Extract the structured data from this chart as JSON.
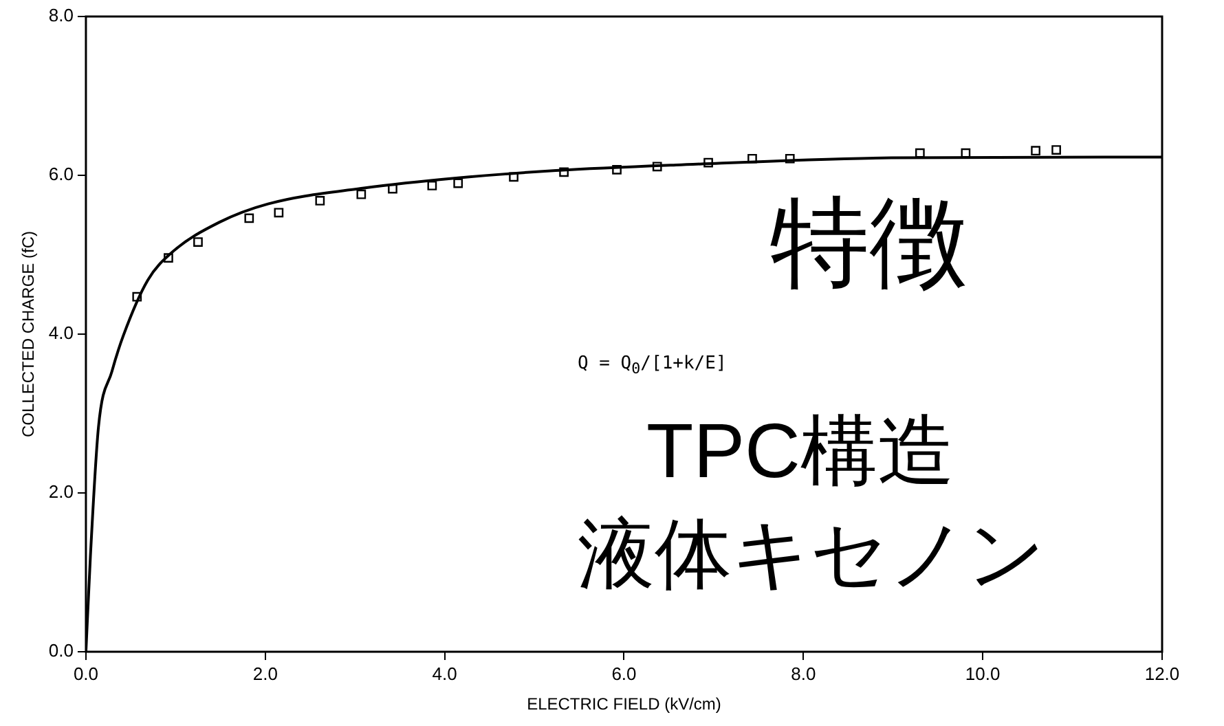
{
  "chart_data": {
    "type": "scatter",
    "xlabel": "ELECTRIC FIELD (kV/cm)",
    "ylabel": "COLLECTED CHARGE (fC)",
    "xlim": [
      0,
      12
    ],
    "ylim": [
      0,
      8
    ],
    "xticks": [
      {
        "value": 0,
        "label": "0.0"
      },
      {
        "value": 2,
        "label": "2.0"
      },
      {
        "value": 4,
        "label": "4.0"
      },
      {
        "value": 6,
        "label": "6.0"
      },
      {
        "value": 8,
        "label": "8.0"
      },
      {
        "value": 10,
        "label": "10.0"
      },
      {
        "value": 12,
        "label": "12.0"
      }
    ],
    "yticks": [
      {
        "value": 0,
        "label": "0.0"
      },
      {
        "value": 2,
        "label": "2.0"
      },
      {
        "value": 4,
        "label": "4.0"
      },
      {
        "value": 6,
        "label": "6.0"
      },
      {
        "value": 8,
        "label": "8.0"
      }
    ],
    "grid": false,
    "legend": false,
    "series": [
      {
        "type": "line",
        "color": "#000000",
        "marker": "none",
        "line_style": "solid",
        "x": [
          0,
          0.05,
          0.14,
          0.29,
          0.42,
          0.69,
          0.96,
          1.49,
          2.03,
          3.1,
          4.17,
          5.24,
          6.58,
          8.98,
          12
        ],
        "values": [
          0,
          1.2,
          2.83,
          3.53,
          3.99,
          4.68,
          5.03,
          5.41,
          5.64,
          5.84,
          5.97,
          6.06,
          6.13,
          6.22,
          6.23
        ]
      },
      {
        "color": "#000000",
        "marker": "square",
        "x": [
          0.57,
          0.92,
          1.25,
          1.82,
          2.15,
          2.61,
          3.07,
          3.42,
          3.86,
          4.15,
          4.77,
          5.33,
          5.92,
          6.37,
          6.94,
          7.43,
          7.85,
          9.3,
          9.81,
          10.59,
          10.82
        ],
        "values": [
          4.47,
          4.96,
          5.16,
          5.46,
          5.53,
          5.68,
          5.76,
          5.83,
          5.87,
          5.9,
          5.98,
          6.04,
          6.07,
          6.11,
          6.16,
          6.21,
          6.21,
          6.28,
          6.28,
          6.31,
          6.32
        ]
      }
    ],
    "annotations": [
      "Q = Q$_{0}$/[1+k/E]",
      "特徴",
      "TPC構造",
      "液体キセノン"
    ]
  }
}
